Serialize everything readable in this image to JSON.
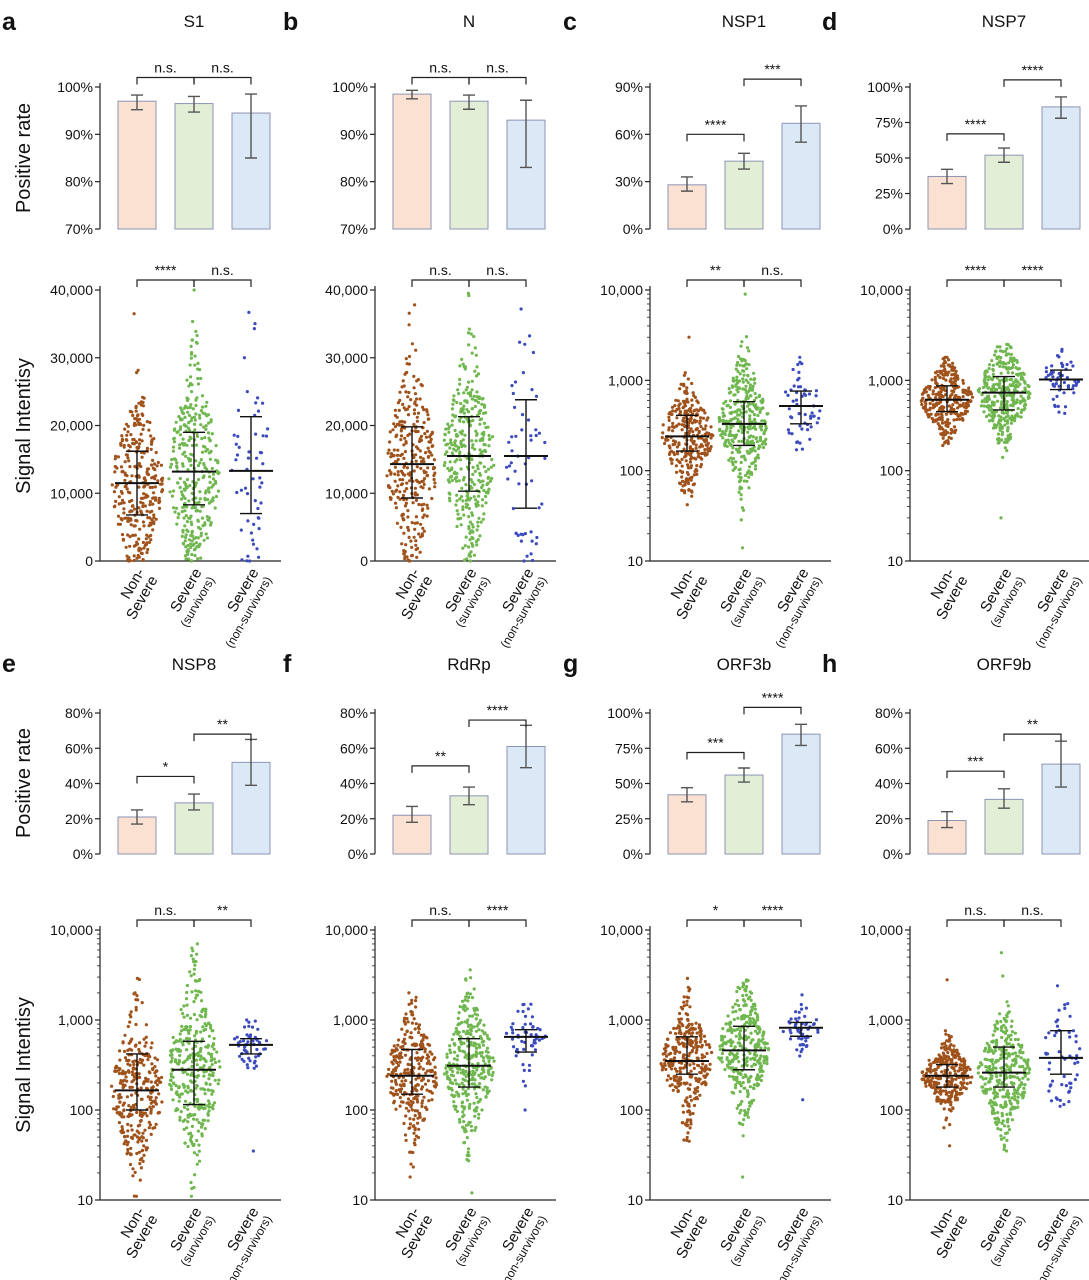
{
  "figure": {
    "ylabel_rate": "Positive rate",
    "ylabel_signal": "Signal Intentisy",
    "categories": [
      {
        "main": "Non-",
        "sub": "Severe"
      },
      {
        "main": "Severe",
        "sub": "(survivors)"
      },
      {
        "main": "Severe",
        "sub": "(non-survivors)"
      }
    ]
  },
  "colors": {
    "bar_fill": [
      "#fbe1d2",
      "#e2efd6",
      "#dbe8f6"
    ],
    "bar_stroke": [
      "#8d93b5",
      "#8d93b5",
      "#8d93b5"
    ],
    "dot": [
      "#a0521b",
      "#6fb74e",
      "#3b4bbd"
    ]
  },
  "chart_data": [
    {
      "letter": "a",
      "title": "S1",
      "bar": {
        "type": "bar",
        "ylim": [
          70,
          100
        ],
        "yticks": [
          70,
          80,
          90,
          100
        ],
        "values": [
          97,
          96.5,
          94.5
        ],
        "err_low": [
          95.2,
          94.7,
          85
        ],
        "err_high": [
          98.3,
          98,
          98.5
        ],
        "sig": [
          {
            "from": 0,
            "to": 1,
            "label": "n.s.",
            "y": 102
          },
          {
            "from": 1,
            "to": 2,
            "label": "n.s.",
            "y": 102
          }
        ]
      },
      "scatter": {
        "type": "scatter",
        "scale": "linear",
        "ylim": [
          0,
          40000
        ],
        "yticks": [
          0,
          10000,
          20000,
          30000,
          40000
        ],
        "n": [
          300,
          340,
          55
        ],
        "median": [
          11500,
          13200,
          13300
        ],
        "q_low": [
          6800,
          8300,
          7000
        ],
        "q_high": [
          16200,
          19000,
          21300
        ],
        "min": [
          0,
          0,
          0
        ],
        "max": [
          36500,
          40000,
          36700
        ],
        "sig": [
          {
            "from": 0,
            "to": 1,
            "label": "****",
            "y": 41500
          },
          {
            "from": 1,
            "to": 2,
            "label": "n.s.",
            "y": 41500
          }
        ]
      }
    },
    {
      "letter": "b",
      "title": "N",
      "bar": {
        "type": "bar",
        "ylim": [
          70,
          100
        ],
        "yticks": [
          70,
          80,
          90,
          100
        ],
        "values": [
          98.5,
          97,
          93
        ],
        "err_low": [
          97.5,
          95.3,
          83
        ],
        "err_high": [
          99.3,
          98.3,
          97.2
        ],
        "sig": [
          {
            "from": 0,
            "to": 1,
            "label": "n.s.",
            "y": 102
          },
          {
            "from": 1,
            "to": 2,
            "label": "n.s.",
            "y": 102
          }
        ]
      },
      "scatter": {
        "type": "scatter",
        "scale": "linear",
        "ylim": [
          0,
          40000
        ],
        "yticks": [
          0,
          10000,
          20000,
          30000,
          40000
        ],
        "n": [
          300,
          340,
          55
        ],
        "median": [
          14300,
          15500,
          15500
        ],
        "q_low": [
          9300,
          10300,
          7800
        ],
        "q_high": [
          19800,
          21300,
          23800
        ],
        "min": [
          0,
          0,
          0
        ],
        "max": [
          37800,
          39500,
          37200
        ],
        "sig": [
          {
            "from": 0,
            "to": 1,
            "label": "n.s.",
            "y": 41500
          },
          {
            "from": 1,
            "to": 2,
            "label": "n.s.",
            "y": 41500
          }
        ]
      }
    },
    {
      "letter": "c",
      "title": "NSP1",
      "bar": {
        "type": "bar",
        "ylim": [
          0,
          90
        ],
        "yticks": [
          0,
          30,
          60,
          90
        ],
        "values": [
          28,
          43,
          67
        ],
        "err_low": [
          24,
          38,
          55
        ],
        "err_high": [
          33,
          48,
          78
        ],
        "sig": [
          {
            "from": 0,
            "to": 1,
            "label": "****",
            "y": 60
          },
          {
            "from": 1,
            "to": 2,
            "label": "***",
            "y": 95
          }
        ]
      },
      "scatter": {
        "type": "scatter",
        "scale": "log",
        "ylim": [
          10,
          10000
        ],
        "yticks": [
          10,
          100,
          1000,
          10000
        ],
        "n": [
          300,
          340,
          55
        ],
        "median": [
          240,
          330,
          520
        ],
        "q_low": [
          165,
          190,
          330
        ],
        "q_high": [
          410,
          580,
          760
        ],
        "min": [
          42,
          14,
          170
        ],
        "max": [
          3000,
          9000,
          1800
        ],
        "sig": [
          {
            "from": 0,
            "to": 1,
            "label": "**",
            "y": 13000
          },
          {
            "from": 1,
            "to": 2,
            "label": "n.s.",
            "y": 13000
          }
        ]
      }
    },
    {
      "letter": "d",
      "title": "NSP7",
      "bar": {
        "type": "bar",
        "ylim": [
          0,
          100
        ],
        "yticks": [
          0,
          25,
          50,
          75,
          100
        ],
        "values": [
          37,
          52,
          86
        ],
        "err_low": [
          32,
          47,
          78
        ],
        "err_high": [
          42,
          57,
          93
        ],
        "sig": [
          {
            "from": 0,
            "to": 1,
            "label": "****",
            "y": 67
          },
          {
            "from": 1,
            "to": 2,
            "label": "****",
            "y": 105
          }
        ]
      },
      "scatter": {
        "type": "scatter",
        "scale": "log",
        "ylim": [
          10,
          10000
        ],
        "yticks": [
          10,
          100,
          1000,
          10000
        ],
        "n": [
          300,
          340,
          55
        ],
        "median": [
          610,
          730,
          1020
        ],
        "q_low": [
          450,
          470,
          790
        ],
        "q_high": [
          870,
          1100,
          1300
        ],
        "min": [
          190,
          30,
          430
        ],
        "max": [
          1800,
          2500,
          2200
        ],
        "sig": [
          {
            "from": 0,
            "to": 1,
            "label": "****",
            "y": 13000
          },
          {
            "from": 1,
            "to": 2,
            "label": "****",
            "y": 13000
          }
        ]
      }
    },
    {
      "letter": "e",
      "title": "NSP8",
      "bar": {
        "type": "bar",
        "ylim": [
          0,
          80
        ],
        "yticks": [
          0,
          20,
          40,
          60,
          80
        ],
        "values": [
          21,
          29,
          52
        ],
        "err_low": [
          17,
          25,
          39
        ],
        "err_high": [
          25,
          34,
          65
        ],
        "sig": [
          {
            "from": 0,
            "to": 1,
            "label": "*",
            "y": 44
          },
          {
            "from": 1,
            "to": 2,
            "label": "**",
            "y": 68
          }
        ]
      },
      "scatter": {
        "type": "scatter",
        "scale": "log",
        "ylim": [
          10,
          10000
        ],
        "yticks": [
          10,
          100,
          1000,
          10000
        ],
        "n": [
          300,
          340,
          55
        ],
        "median": [
          165,
          280,
          530
        ],
        "q_low": [
          100,
          115,
          420
        ],
        "q_high": [
          420,
          580,
          620
        ],
        "min": [
          11,
          11,
          35
        ],
        "max": [
          2900,
          7000,
          1000
        ],
        "sig": [
          {
            "from": 0,
            "to": 1,
            "label": "n.s.",
            "y": 13000
          },
          {
            "from": 1,
            "to": 2,
            "label": "**",
            "y": 13000
          }
        ]
      }
    },
    {
      "letter": "f",
      "title": "RdRp",
      "bar": {
        "type": "bar",
        "ylim": [
          0,
          80
        ],
        "yticks": [
          0,
          20,
          40,
          60,
          80
        ],
        "values": [
          22,
          33,
          61
        ],
        "err_low": [
          18,
          28,
          49
        ],
        "err_high": [
          27,
          38,
          73
        ],
        "sig": [
          {
            "from": 0,
            "to": 1,
            "label": "**",
            "y": 50
          },
          {
            "from": 1,
            "to": 2,
            "label": "****",
            "y": 76
          }
        ]
      },
      "scatter": {
        "type": "scatter",
        "scale": "log",
        "ylim": [
          10,
          10000
        ],
        "yticks": [
          10,
          100,
          1000,
          10000
        ],
        "n": [
          300,
          340,
          55
        ],
        "median": [
          240,
          310,
          650
        ],
        "q_low": [
          150,
          180,
          440
        ],
        "q_high": [
          470,
          620,
          780
        ],
        "min": [
          18,
          12,
          100
        ],
        "max": [
          2000,
          3600,
          1500
        ],
        "sig": [
          {
            "from": 0,
            "to": 1,
            "label": "n.s.",
            "y": 13000
          },
          {
            "from": 1,
            "to": 2,
            "label": "****",
            "y": 13000
          }
        ]
      }
    },
    {
      "letter": "g",
      "title": "ORF3b",
      "bar": {
        "type": "bar",
        "ylim": [
          0,
          100
        ],
        "yticks": [
          0,
          25,
          50,
          75,
          100
        ],
        "values": [
          42,
          56,
          85
        ],
        "err_low": [
          37,
          51,
          77
        ],
        "err_high": [
          47,
          61,
          92
        ],
        "sig": [
          {
            "from": 0,
            "to": 1,
            "label": "***",
            "y": 72
          },
          {
            "from": 1,
            "to": 2,
            "label": "****",
            "y": 104
          }
        ]
      },
      "scatter": {
        "type": "scatter",
        "scale": "log",
        "ylim": [
          10,
          10000
        ],
        "yticks": [
          10,
          100,
          1000,
          10000
        ],
        "n": [
          300,
          340,
          55
        ],
        "median": [
          350,
          460,
          820
        ],
        "q_low": [
          250,
          280,
          660
        ],
        "q_high": [
          650,
          850,
          940
        ],
        "min": [
          45,
          18,
          130
        ],
        "max": [
          2900,
          2800,
          1900
        ],
        "sig": [
          {
            "from": 0,
            "to": 1,
            "label": "*",
            "y": 13000
          },
          {
            "from": 1,
            "to": 2,
            "label": "****",
            "y": 13000
          }
        ]
      }
    },
    {
      "letter": "h",
      "title": "ORF9b",
      "bar": {
        "type": "bar",
        "ylim": [
          0,
          80
        ],
        "yticks": [
          0,
          20,
          40,
          60,
          80
        ],
        "values": [
          19,
          31,
          51
        ],
        "err_low": [
          15,
          26,
          38
        ],
        "err_high": [
          24,
          37,
          64
        ],
        "sig": [
          {
            "from": 0,
            "to": 1,
            "label": "***",
            "y": 47
          },
          {
            "from": 1,
            "to": 2,
            "label": "**",
            "y": 68
          }
        ]
      },
      "scatter": {
        "type": "scatter",
        "scale": "log",
        "ylim": [
          10,
          10000
        ],
        "yticks": [
          10,
          100,
          1000,
          10000
        ],
        "n": [
          300,
          340,
          55
        ],
        "median": [
          240,
          260,
          380
        ],
        "q_low": [
          180,
          180,
          250
        ],
        "q_high": [
          320,
          500,
          760
        ],
        "min": [
          40,
          35,
          110
        ],
        "max": [
          2800,
          5600,
          2400
        ],
        "sig": [
          {
            "from": 0,
            "to": 1,
            "label": "n.s.",
            "y": 13000
          },
          {
            "from": 1,
            "to": 2,
            "label": "n.s.",
            "y": 13000
          }
        ]
      }
    }
  ]
}
